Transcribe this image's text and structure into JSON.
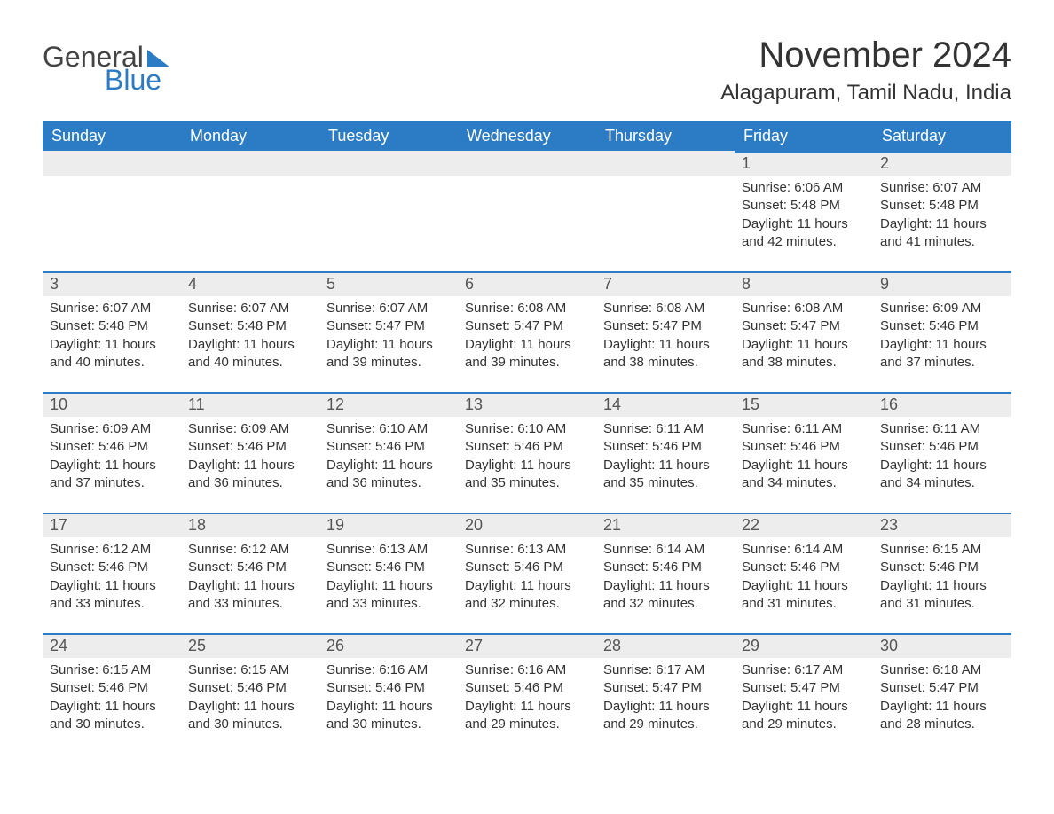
{
  "brand": {
    "text1": "General",
    "text2": "Blue",
    "accent": "#2b7cc4"
  },
  "title": "November 2024",
  "location": "Alagapuram, Tamil Nadu, India",
  "colors": {
    "header_bg": "#2b7cc4",
    "header_text": "#ffffff",
    "daybar_bg": "#ededed",
    "daybar_border": "#2b7cc4",
    "body_text": "#333333",
    "page_bg": "#ffffff"
  },
  "fonts": {
    "title_pt": 40,
    "location_pt": 24,
    "dayheader_pt": 18,
    "body_pt": 15
  },
  "day_headers": [
    "Sunday",
    "Monday",
    "Tuesday",
    "Wednesday",
    "Thursday",
    "Friday",
    "Saturday"
  ],
  "weeks": [
    [
      null,
      null,
      null,
      null,
      null,
      {
        "n": 1,
        "sunrise": "6:06 AM",
        "sunset": "5:48 PM",
        "daylight": "11 hours and 42 minutes."
      },
      {
        "n": 2,
        "sunrise": "6:07 AM",
        "sunset": "5:48 PM",
        "daylight": "11 hours and 41 minutes."
      }
    ],
    [
      {
        "n": 3,
        "sunrise": "6:07 AM",
        "sunset": "5:48 PM",
        "daylight": "11 hours and 40 minutes."
      },
      {
        "n": 4,
        "sunrise": "6:07 AM",
        "sunset": "5:48 PM",
        "daylight": "11 hours and 40 minutes."
      },
      {
        "n": 5,
        "sunrise": "6:07 AM",
        "sunset": "5:47 PM",
        "daylight": "11 hours and 39 minutes."
      },
      {
        "n": 6,
        "sunrise": "6:08 AM",
        "sunset": "5:47 PM",
        "daylight": "11 hours and 39 minutes."
      },
      {
        "n": 7,
        "sunrise": "6:08 AM",
        "sunset": "5:47 PM",
        "daylight": "11 hours and 38 minutes."
      },
      {
        "n": 8,
        "sunrise": "6:08 AM",
        "sunset": "5:47 PM",
        "daylight": "11 hours and 38 minutes."
      },
      {
        "n": 9,
        "sunrise": "6:09 AM",
        "sunset": "5:46 PM",
        "daylight": "11 hours and 37 minutes."
      }
    ],
    [
      {
        "n": 10,
        "sunrise": "6:09 AM",
        "sunset": "5:46 PM",
        "daylight": "11 hours and 37 minutes."
      },
      {
        "n": 11,
        "sunrise": "6:09 AM",
        "sunset": "5:46 PM",
        "daylight": "11 hours and 36 minutes."
      },
      {
        "n": 12,
        "sunrise": "6:10 AM",
        "sunset": "5:46 PM",
        "daylight": "11 hours and 36 minutes."
      },
      {
        "n": 13,
        "sunrise": "6:10 AM",
        "sunset": "5:46 PM",
        "daylight": "11 hours and 35 minutes."
      },
      {
        "n": 14,
        "sunrise": "6:11 AM",
        "sunset": "5:46 PM",
        "daylight": "11 hours and 35 minutes."
      },
      {
        "n": 15,
        "sunrise": "6:11 AM",
        "sunset": "5:46 PM",
        "daylight": "11 hours and 34 minutes."
      },
      {
        "n": 16,
        "sunrise": "6:11 AM",
        "sunset": "5:46 PM",
        "daylight": "11 hours and 34 minutes."
      }
    ],
    [
      {
        "n": 17,
        "sunrise": "6:12 AM",
        "sunset": "5:46 PM",
        "daylight": "11 hours and 33 minutes."
      },
      {
        "n": 18,
        "sunrise": "6:12 AM",
        "sunset": "5:46 PM",
        "daylight": "11 hours and 33 minutes."
      },
      {
        "n": 19,
        "sunrise": "6:13 AM",
        "sunset": "5:46 PM",
        "daylight": "11 hours and 33 minutes."
      },
      {
        "n": 20,
        "sunrise": "6:13 AM",
        "sunset": "5:46 PM",
        "daylight": "11 hours and 32 minutes."
      },
      {
        "n": 21,
        "sunrise": "6:14 AM",
        "sunset": "5:46 PM",
        "daylight": "11 hours and 32 minutes."
      },
      {
        "n": 22,
        "sunrise": "6:14 AM",
        "sunset": "5:46 PM",
        "daylight": "11 hours and 31 minutes."
      },
      {
        "n": 23,
        "sunrise": "6:15 AM",
        "sunset": "5:46 PM",
        "daylight": "11 hours and 31 minutes."
      }
    ],
    [
      {
        "n": 24,
        "sunrise": "6:15 AM",
        "sunset": "5:46 PM",
        "daylight": "11 hours and 30 minutes."
      },
      {
        "n": 25,
        "sunrise": "6:15 AM",
        "sunset": "5:46 PM",
        "daylight": "11 hours and 30 minutes."
      },
      {
        "n": 26,
        "sunrise": "6:16 AM",
        "sunset": "5:46 PM",
        "daylight": "11 hours and 30 minutes."
      },
      {
        "n": 27,
        "sunrise": "6:16 AM",
        "sunset": "5:46 PM",
        "daylight": "11 hours and 29 minutes."
      },
      {
        "n": 28,
        "sunrise": "6:17 AM",
        "sunset": "5:47 PM",
        "daylight": "11 hours and 29 minutes."
      },
      {
        "n": 29,
        "sunrise": "6:17 AM",
        "sunset": "5:47 PM",
        "daylight": "11 hours and 29 minutes."
      },
      {
        "n": 30,
        "sunrise": "6:18 AM",
        "sunset": "5:47 PM",
        "daylight": "11 hours and 28 minutes."
      }
    ]
  ],
  "labels": {
    "sunrise": "Sunrise: ",
    "sunset": "Sunset: ",
    "daylight": "Daylight: "
  }
}
